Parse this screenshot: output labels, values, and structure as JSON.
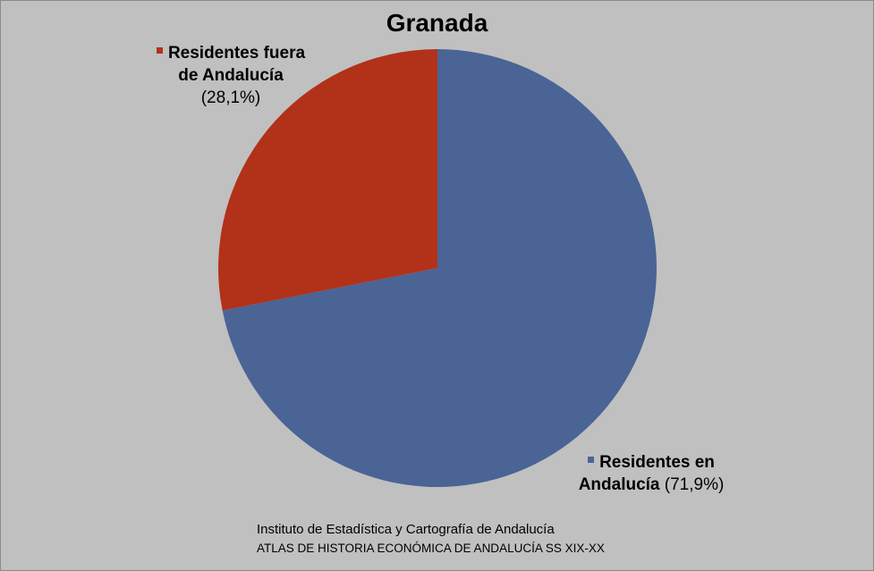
{
  "chart_data": {
    "type": "pie",
    "title": "Granada",
    "slices": [
      {
        "name_line1": "Residentes en",
        "name_line2": "Andalucía",
        "pct_label": "(71,9%)",
        "value": 71.9,
        "color": "#4a6495"
      },
      {
        "name_line1": "Residentes fuera",
        "name_line2": "de Andalucía",
        "pct_label": "(28,1%)",
        "value": 28.1,
        "color": "#b23119"
      }
    ]
  },
  "source": {
    "line1": "Instituto de Estadística y Cartografía de Andalucía",
    "line2": "ATLAS DE HISTORIA ECONÓMICA DE ANDALUCÍA SS XIX-XX"
  }
}
